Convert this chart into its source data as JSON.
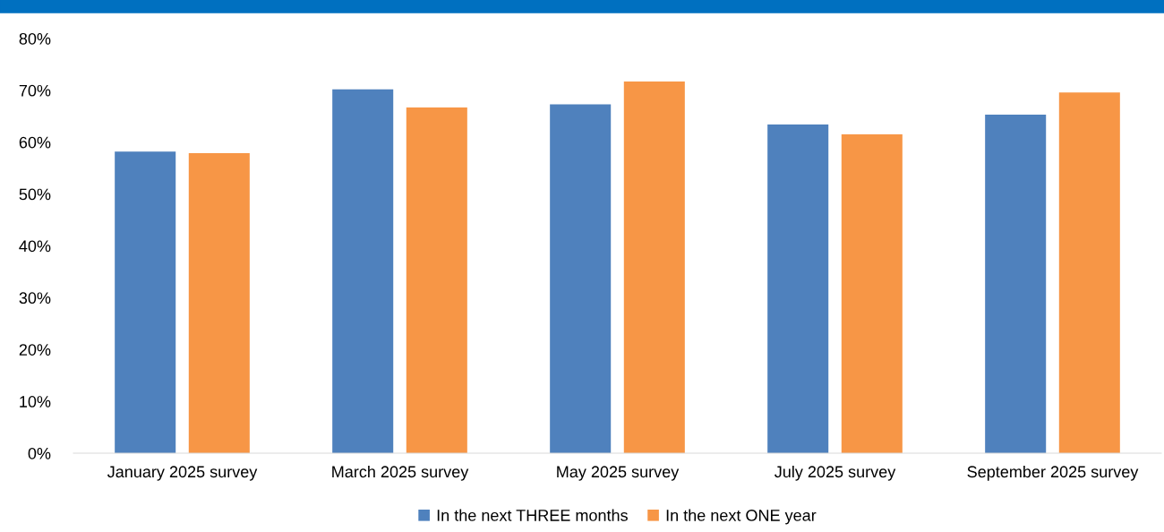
{
  "chart_data": {
    "type": "bar",
    "categories": [
      "January 2025 survey",
      "March 2025 survey",
      "May 2025 survey",
      "July 2025 survey",
      "September 2025 survey"
    ],
    "series": [
      {
        "name": "In the next THREE months",
        "color": "#4f81bd",
        "values": [
          58.2,
          70.2,
          67.3,
          63.4,
          65.3
        ]
      },
      {
        "name": "In the next ONE year",
        "color": "#f79646",
        "values": [
          57.9,
          66.7,
          71.7,
          61.5,
          69.6
        ]
      }
    ],
    "ylim": [
      0,
      80
    ],
    "yticks": [
      {
        "value": 0,
        "label": "0%"
      },
      {
        "value": 10,
        "label": "10%"
      },
      {
        "value": 20,
        "label": "20%"
      },
      {
        "value": 30,
        "label": "30%"
      },
      {
        "value": 40,
        "label": "40%"
      },
      {
        "value": 50,
        "label": "50%"
      },
      {
        "value": 60,
        "label": "60%"
      },
      {
        "value": 70,
        "label": "70%"
      },
      {
        "value": 80,
        "label": "80%"
      }
    ],
    "grid": false,
    "legend": "bottom"
  }
}
